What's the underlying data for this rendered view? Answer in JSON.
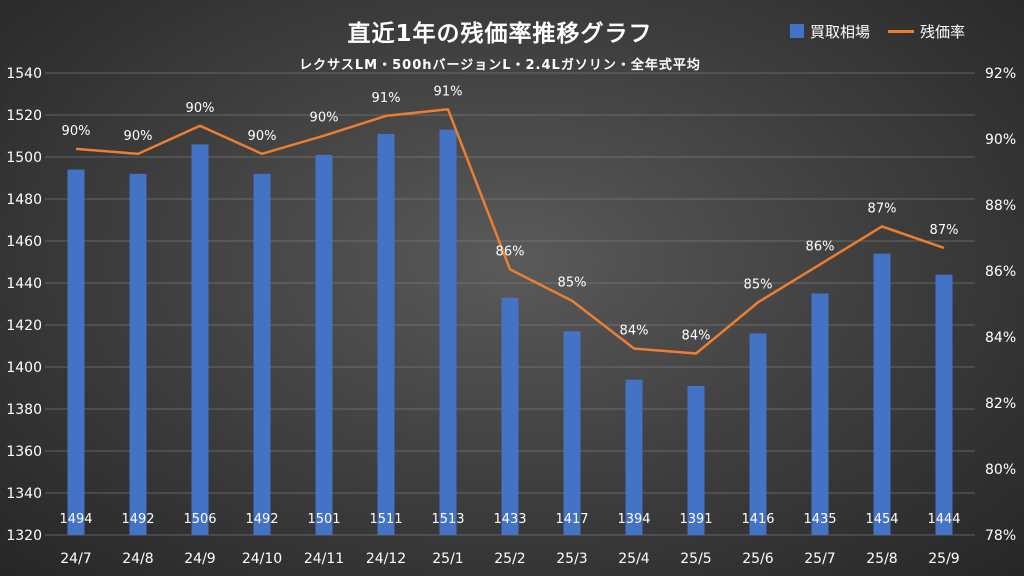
{
  "chart_data": {
    "type": "bar",
    "title": "直近1年の残価率推移グラフ",
    "subtitle": "レクサスLM・500hバージョンL・2.4Lガソリン・全年式平均",
    "categories": [
      "24/7",
      "24/8",
      "24/9",
      "24/10",
      "24/11",
      "24/12",
      "25/1",
      "25/2",
      "25/3",
      "25/4",
      "25/5",
      "25/6",
      "25/7",
      "25/8",
      "25/9"
    ],
    "series": [
      {
        "name": "買取相場",
        "type": "bar",
        "axis": "left",
        "color": "#4472c4",
        "values": [
          1494,
          1492,
          1506,
          1492,
          1501,
          1511,
          1513,
          1433,
          1417,
          1394,
          1391,
          1416,
          1435,
          1454,
          1444
        ],
        "labels": [
          "1494",
          "1492",
          "1506",
          "1492",
          "1501",
          "1511",
          "1513",
          "1433",
          "1417",
          "1394",
          "1391",
          "1416",
          "1435",
          "1454",
          "1444"
        ]
      },
      {
        "name": "残価率",
        "type": "line",
        "axis": "right",
        "color": "#ed7d31",
        "values": [
          89.7,
          89.55,
          90.4,
          89.55,
          90.1,
          90.7,
          90.9,
          86.05,
          85.1,
          83.65,
          83.5,
          85.05,
          86.2,
          87.35,
          86.7
        ],
        "labels": [
          "90%",
          "90%",
          "90%",
          "90%",
          "90%",
          "91%",
          "91%",
          "86%",
          "85%",
          "84%",
          "84%",
          "85%",
          "86%",
          "87%",
          "87%"
        ]
      }
    ],
    "y_left": {
      "min": 1320,
      "max": 1540,
      "step": 20
    },
    "y_right": {
      "min": 78,
      "max": 92,
      "step": 2,
      "ticks": [
        "78%",
        "80%",
        "82%",
        "84%",
        "86%",
        "88%",
        "90%",
        "92%"
      ]
    },
    "legend_position": "top-right"
  }
}
